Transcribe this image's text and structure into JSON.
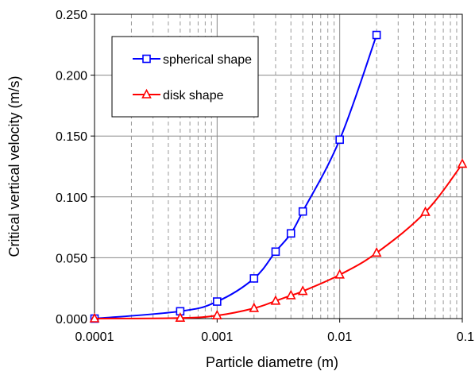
{
  "chart_data": {
    "type": "line",
    "title": "",
    "xlabel": "Particle diametre (m)",
    "ylabel": "Critical vertical velocity (m/s)",
    "x_scale": "log",
    "xlim": [
      0.0001,
      0.1
    ],
    "ylim": [
      0,
      0.25
    ],
    "x_ticks": [
      0.0001,
      0.001,
      0.01,
      0.1
    ],
    "x_tick_labels": [
      "0.0001",
      "0.001",
      "0.01",
      "0.1"
    ],
    "y_ticks": [
      0,
      0.05,
      0.1,
      0.15,
      0.2,
      0.25
    ],
    "y_tick_labels": [
      "0.000",
      "0.050",
      "0.100",
      "0.150",
      "0.200",
      "0.250"
    ],
    "grid": {
      "major_y": true,
      "major_x": true,
      "minor_x_dashed": true
    },
    "legend": {
      "placement": "top-left"
    },
    "series": [
      {
        "name": "spherical shape",
        "color": "#0000ff",
        "marker": "square",
        "x": [
          0.0001,
          0.0005,
          0.001,
          0.002,
          0.003,
          0.004,
          0.005,
          0.01,
          0.02
        ],
        "y": [
          0.0,
          0.006,
          0.014,
          0.033,
          0.055,
          0.07,
          0.088,
          0.147,
          0.233
        ]
      },
      {
        "name": "disk shape",
        "color": "#ff0000",
        "marker": "triangle",
        "x": [
          0.0001,
          0.0005,
          0.001,
          0.002,
          0.003,
          0.004,
          0.005,
          0.01,
          0.02,
          0.05,
          0.1
        ],
        "y": [
          0.0,
          0.0005,
          0.0025,
          0.0085,
          0.0145,
          0.019,
          0.0225,
          0.036,
          0.054,
          0.0875,
          0.127
        ]
      }
    ]
  }
}
